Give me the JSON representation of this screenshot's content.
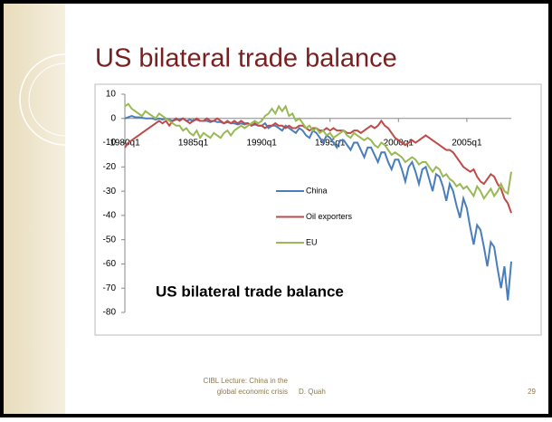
{
  "slide": {
    "title": "US bilateral trade balance",
    "footer": [
      "CIBL Lecture:  China in the",
      "global economic crisis",
      "D. Quah"
    ],
    "page_number": "29"
  },
  "chart_data": {
    "type": "line",
    "annotation": "US bilateral trade balance",
    "categories": [
      "1980q1",
      null,
      null,
      null,
      null,
      null,
      null,
      null,
      null,
      null,
      null,
      null,
      null,
      null,
      null,
      null,
      null,
      null,
      null,
      null,
      "1985q1",
      null,
      null,
      null,
      null,
      null,
      null,
      null,
      null,
      null,
      null,
      null,
      null,
      null,
      null,
      null,
      null,
      null,
      null,
      null,
      "1990q1",
      null,
      null,
      null,
      null,
      null,
      null,
      null,
      null,
      null,
      null,
      null,
      null,
      null,
      null,
      null,
      null,
      null,
      null,
      null,
      "1995q1",
      null,
      null,
      null,
      null,
      null,
      null,
      null,
      null,
      null,
      null,
      null,
      null,
      null,
      null,
      null,
      null,
      null,
      null,
      null,
      "2000q1",
      null,
      null,
      null,
      null,
      null,
      null,
      null,
      null,
      null,
      null,
      null,
      null,
      null,
      null,
      null,
      null,
      null,
      null,
      null,
      "2005q1",
      null,
      null,
      null,
      null,
      null,
      null,
      null,
      null,
      null,
      null,
      null,
      null,
      null
    ],
    "series": [
      {
        "name": "China",
        "color": "#4a7ebb",
        "values": [
          0,
          0.5,
          1,
          0.5,
          0.5,
          0.3,
          0,
          0,
          0,
          -0.5,
          0,
          -0.5,
          0,
          -0.5,
          -1,
          -0.5,
          -0.5,
          0,
          -1,
          -0.5,
          -1,
          -0.5,
          -1,
          -1,
          -1,
          -1.5,
          -1,
          -1.5,
          -1.5,
          -2,
          -1.5,
          -2,
          -2,
          -2.5,
          -2,
          -2.5,
          -2,
          -3,
          -2.5,
          -3,
          -3,
          -2,
          -4,
          -3,
          -3,
          -4,
          -5,
          -3,
          -4,
          -5,
          -6,
          -4,
          -5,
          -7,
          -8,
          -5,
          -6,
          -8,
          -10,
          -7,
          -8,
          -10,
          -12,
          -9,
          -9,
          -11,
          -13,
          -10,
          -10,
          -13,
          -16,
          -12,
          -12,
          -15,
          -18,
          -14,
          -14,
          -18,
          -21,
          -17,
          -17,
          -21,
          -26,
          -20,
          -18,
          -22,
          -27,
          -21,
          -20,
          -25,
          -30,
          -23,
          -24,
          -28,
          -34,
          -27,
          -30,
          -36,
          -41,
          -33,
          -37,
          -45,
          -52,
          -44,
          -46,
          -53,
          -61,
          -51,
          -53,
          -62,
          -70,
          -61,
          -75,
          -59
        ]
      },
      {
        "name": "Oil exporters",
        "color": "#be4b48",
        "values": [
          -12,
          -10,
          -9,
          -8,
          -7,
          -6,
          -5,
          -4,
          -3,
          -2,
          -1,
          -2,
          -1,
          -3,
          -1,
          0,
          -1,
          0,
          -1,
          -2,
          -1,
          0,
          -1,
          -1,
          0,
          -1,
          -1,
          0,
          -1,
          -2,
          -1,
          -2,
          -1,
          -2,
          -1,
          -2,
          -2,
          -3,
          -2,
          -3,
          -3,
          -4,
          -3,
          -3,
          -2,
          -3,
          -3,
          -4,
          -3,
          -4,
          -4,
          -3,
          -3,
          -4,
          -5,
          -4,
          -4,
          -5,
          -5,
          -4,
          -5,
          -4,
          -5,
          -5,
          -5,
          -6,
          -6,
          -5,
          -5,
          -6,
          -5,
          -4,
          -3,
          -4,
          -3,
          -1,
          -3,
          -4,
          -6,
          -8,
          -9,
          -10,
          -11,
          -10,
          -9,
          -10,
          -9,
          -8,
          -7,
          -8,
          -9,
          -10,
          -11,
          -12,
          -13,
          -13,
          -14,
          -16,
          -18,
          -20,
          -21,
          -22,
          -21,
          -24,
          -26,
          -27,
          -25,
          -23,
          -24,
          -27,
          -29,
          -33,
          -35,
          -39
        ]
      },
      {
        "name": "EU",
        "color": "#98b954",
        "values": [
          5,
          6,
          4,
          3,
          2,
          1,
          3,
          2,
          1,
          0,
          2,
          1,
          0,
          -1,
          -2,
          -3,
          -3,
          -5,
          -4,
          -6,
          -7,
          -5,
          -8,
          -6,
          -7,
          -8,
          -6,
          -7,
          -8,
          -6,
          -5,
          -7,
          -5,
          -4,
          -3,
          -4,
          -3,
          -2,
          -1,
          -2,
          -1,
          1,
          2,
          4,
          2,
          5,
          3,
          5,
          1,
          2,
          -1,
          0,
          -2,
          -4,
          -3,
          -5,
          -4,
          -6,
          -5,
          -7,
          -6,
          -8,
          -7,
          -6,
          -5,
          -7,
          -8,
          -6,
          -7,
          -8,
          -9,
          -8,
          -9,
          -11,
          -12,
          -10,
          -11,
          -13,
          -15,
          -14,
          -15,
          -16,
          -18,
          -17,
          -16,
          -17,
          -19,
          -18,
          -18,
          -20,
          -22,
          -20,
          -21,
          -24,
          -23,
          -25,
          -26,
          -28,
          -27,
          -29,
          -28,
          -30,
          -32,
          -28,
          -30,
          -33,
          -31,
          -29,
          -32,
          -30,
          -27,
          -30,
          -31,
          -22
        ]
      }
    ],
    "ylim": [
      -80,
      10
    ],
    "yticks": [
      -80,
      -70,
      -60,
      -50,
      -40,
      -30,
      -20,
      -10,
      0,
      10
    ],
    "grid": false
  }
}
